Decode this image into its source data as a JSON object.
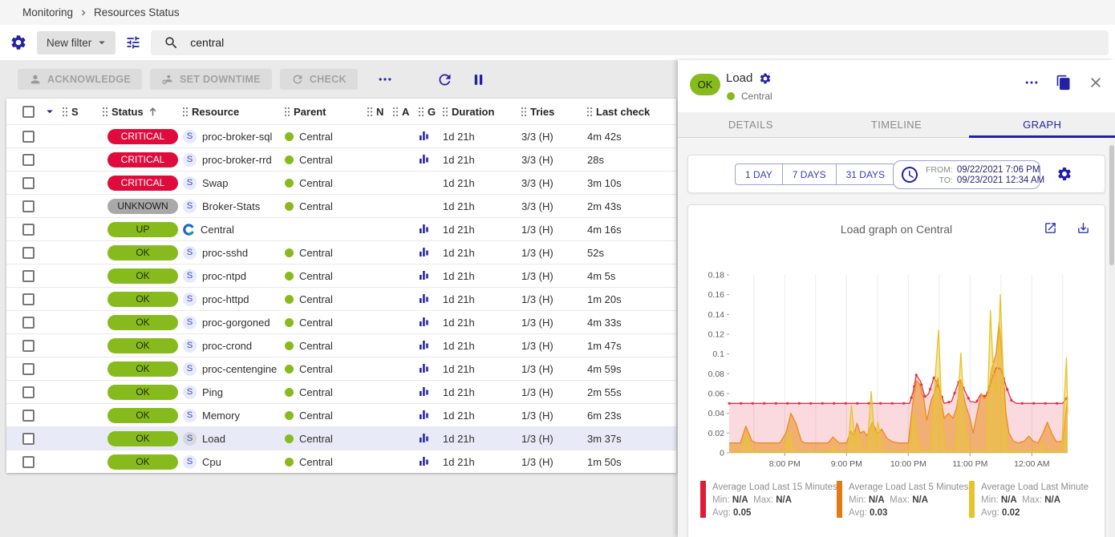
{
  "breadcrumb": {
    "items": [
      "Monitoring",
      "Resources Status"
    ]
  },
  "filter": {
    "new_filter_label": "New filter",
    "search_value": "central"
  },
  "toolbar": {
    "acknowledge_label": "ACKNOWLEDGE",
    "set_downtime_label": "SET DOWNTIME",
    "check_label": "CHECK"
  },
  "table": {
    "service_badge": "S",
    "columns": [
      "S",
      "Status",
      "Resource",
      "Parent",
      "N",
      "A",
      "G",
      "Duration",
      "Tries",
      "Last check"
    ],
    "rows": [
      {
        "status": "CRITICAL",
        "kind": "service",
        "resource": "proc-broker-sql",
        "parent": "Central",
        "graph": true,
        "duration": "1d 21h",
        "tries": "3/3 (H)",
        "last_check": "4m 42s",
        "selected": false
      },
      {
        "status": "CRITICAL",
        "kind": "service",
        "resource": "proc-broker-rrd",
        "parent": "Central",
        "graph": true,
        "duration": "1d 21h",
        "tries": "3/3 (H)",
        "last_check": "28s",
        "selected": false
      },
      {
        "status": "CRITICAL",
        "kind": "service",
        "resource": "Swap",
        "parent": "Central",
        "graph": false,
        "duration": "1d 21h",
        "tries": "3/3 (H)",
        "last_check": "3m 10s",
        "selected": false
      },
      {
        "status": "UNKNOWN",
        "kind": "service",
        "resource": "Broker-Stats",
        "parent": "Central",
        "graph": false,
        "duration": "1d 21h",
        "tries": "3/3 (H)",
        "last_check": "2m 43s",
        "selected": false
      },
      {
        "status": "UP",
        "kind": "host",
        "resource": "Central",
        "parent": "",
        "graph": true,
        "duration": "1d 21h",
        "tries": "1/3 (H)",
        "last_check": "4m 16s",
        "selected": false
      },
      {
        "status": "OK",
        "kind": "service",
        "resource": "proc-sshd",
        "parent": "Central",
        "graph": true,
        "duration": "1d 21h",
        "tries": "1/3 (H)",
        "last_check": "52s",
        "selected": false
      },
      {
        "status": "OK",
        "kind": "service",
        "resource": "proc-ntpd",
        "parent": "Central",
        "graph": true,
        "duration": "1d 21h",
        "tries": "1/3 (H)",
        "last_check": "4m 5s",
        "selected": false
      },
      {
        "status": "OK",
        "kind": "service",
        "resource": "proc-httpd",
        "parent": "Central",
        "graph": true,
        "duration": "1d 21h",
        "tries": "1/3 (H)",
        "last_check": "1m 20s",
        "selected": false
      },
      {
        "status": "OK",
        "kind": "service",
        "resource": "proc-gorgoned",
        "parent": "Central",
        "graph": true,
        "duration": "1d 21h",
        "tries": "1/3 (H)",
        "last_check": "4m 33s",
        "selected": false
      },
      {
        "status": "OK",
        "kind": "service",
        "resource": "proc-crond",
        "parent": "Central",
        "graph": true,
        "duration": "1d 21h",
        "tries": "1/3 (H)",
        "last_check": "1m 47s",
        "selected": false
      },
      {
        "status": "OK",
        "kind": "service",
        "resource": "proc-centengine",
        "parent": "Central",
        "graph": true,
        "duration": "1d 21h",
        "tries": "1/3 (H)",
        "last_check": "4m 59s",
        "selected": false
      },
      {
        "status": "OK",
        "kind": "service",
        "resource": "Ping",
        "parent": "Central",
        "graph": true,
        "duration": "1d 21h",
        "tries": "1/3 (H)",
        "last_check": "2m 55s",
        "selected": false
      },
      {
        "status": "OK",
        "kind": "service",
        "resource": "Memory",
        "parent": "Central",
        "graph": true,
        "duration": "1d 21h",
        "tries": "1/3 (H)",
        "last_check": "6m 23s",
        "selected": false
      },
      {
        "status": "OK",
        "kind": "service",
        "resource": "Load",
        "parent": "Central",
        "graph": true,
        "duration": "1d 21h",
        "tries": "1/3 (H)",
        "last_check": "3m 37s",
        "selected": true
      },
      {
        "status": "OK",
        "kind": "service",
        "resource": "Cpu",
        "parent": "Central",
        "graph": true,
        "duration": "1d 21h",
        "tries": "1/3 (H)",
        "last_check": "1m 50s",
        "selected": false
      }
    ]
  },
  "panel": {
    "status": "OK",
    "title": "Load",
    "parent": "Central",
    "tabs": [
      "DETAILS",
      "TIMELINE",
      "GRAPH"
    ],
    "active_tab": "GRAPH",
    "time_buttons": [
      "1 DAY",
      "7 DAYS",
      "31 DAYS"
    ],
    "from_label": "FROM:",
    "from_value": "09/22/2021 7:06 PM",
    "to_label": "TO:",
    "to_value": "09/23/2021 12:34 AM"
  },
  "chart_data": {
    "type": "area",
    "title": "Load graph on Central",
    "xlim": [
      19.1,
      24.58
    ],
    "ylim": [
      0,
      0.18
    ],
    "grid": "vertical-30min",
    "legend_position": "bottom",
    "legend_labels": {
      "min": "Min:",
      "max": "Max:",
      "avg": "Avg:"
    },
    "y_ticks": [
      0,
      0.02,
      0.04,
      0.06,
      0.08,
      0.1,
      0.12,
      0.14,
      0.16,
      0.18
    ],
    "x_ticks": [
      {
        "v": 20,
        "label": "8:00 PM"
      },
      {
        "v": 21,
        "label": "9:00 PM"
      },
      {
        "v": 22,
        "label": "10:00 PM"
      },
      {
        "v": 23,
        "label": "11:00 PM"
      },
      {
        "v": 24,
        "label": "12:00 AM"
      }
    ],
    "series": [
      {
        "name": "Average Load Last 15 Minutes",
        "color": "#e3304a",
        "fill": "rgba(227,48,74,0.18)",
        "swatch": "#e01b36",
        "dotted": true,
        "min": "N/A",
        "max": "N/A",
        "avg": "0.05",
        "points": [
          [
            19.1,
            0.05
          ],
          [
            22.02,
            0.05
          ],
          [
            22.08,
            0.062
          ],
          [
            22.13,
            0.079
          ],
          [
            22.2,
            0.072
          ],
          [
            22.27,
            0.056
          ],
          [
            22.33,
            0.06
          ],
          [
            22.42,
            0.077
          ],
          [
            22.5,
            0.065
          ],
          [
            22.58,
            0.05
          ],
          [
            22.7,
            0.052
          ],
          [
            22.83,
            0.074
          ],
          [
            22.92,
            0.062
          ],
          [
            23.0,
            0.052
          ],
          [
            23.1,
            0.051
          ],
          [
            23.17,
            0.059
          ],
          [
            23.25,
            0.057
          ],
          [
            23.33,
            0.07
          ],
          [
            23.42,
            0.086
          ],
          [
            23.5,
            0.085
          ],
          [
            23.58,
            0.068
          ],
          [
            23.67,
            0.053
          ],
          [
            23.75,
            0.05
          ],
          [
            24.5,
            0.05
          ],
          [
            24.58,
            0.057
          ]
        ]
      },
      {
        "name": "Average Load Last 5 Minutes",
        "color": "#ea8c1a",
        "fill": "rgba(234,140,26,0.55)",
        "swatch": "#e37a12",
        "dotted": false,
        "min": "N/A",
        "max": "N/A",
        "avg": "0.03",
        "points": [
          [
            19.1,
            0.01
          ],
          [
            19.28,
            0.01
          ],
          [
            19.37,
            0.027
          ],
          [
            19.47,
            0.012
          ],
          [
            19.55,
            0.01
          ],
          [
            19.92,
            0.01
          ],
          [
            20.02,
            0.02
          ],
          [
            20.1,
            0.04
          ],
          [
            20.18,
            0.03
          ],
          [
            20.27,
            0.012
          ],
          [
            20.33,
            0.01
          ],
          [
            20.7,
            0.01
          ],
          [
            20.78,
            0.016
          ],
          [
            20.88,
            0.01
          ],
          [
            21.0,
            0.01
          ],
          [
            21.07,
            0.022
          ],
          [
            21.12,
            0.018
          ],
          [
            21.17,
            0.03
          ],
          [
            21.22,
            0.02
          ],
          [
            21.28,
            0.022
          ],
          [
            21.33,
            0.017
          ],
          [
            21.42,
            0.031
          ],
          [
            21.5,
            0.02
          ],
          [
            21.57,
            0.024
          ],
          [
            21.65,
            0.015
          ],
          [
            21.75,
            0.011
          ],
          [
            21.85,
            0.01
          ],
          [
            22.0,
            0.01
          ],
          [
            22.08,
            0.055
          ],
          [
            22.13,
            0.073
          ],
          [
            22.18,
            0.07
          ],
          [
            22.25,
            0.055
          ],
          [
            22.3,
            0.033
          ],
          [
            22.37,
            0.053
          ],
          [
            22.43,
            0.062
          ],
          [
            22.48,
            0.076
          ],
          [
            22.53,
            0.055
          ],
          [
            22.58,
            0.035
          ],
          [
            22.65,
            0.04
          ],
          [
            22.72,
            0.035
          ],
          [
            22.78,
            0.045
          ],
          [
            22.85,
            0.074
          ],
          [
            22.92,
            0.05
          ],
          [
            23.0,
            0.035
          ],
          [
            23.05,
            0.02
          ],
          [
            23.13,
            0.045
          ],
          [
            23.18,
            0.06
          ],
          [
            23.23,
            0.055
          ],
          [
            23.3,
            0.06
          ],
          [
            23.35,
            0.085
          ],
          [
            23.42,
            0.1
          ],
          [
            23.47,
            0.132
          ],
          [
            23.53,
            0.09
          ],
          [
            23.58,
            0.04
          ],
          [
            23.63,
            0.02
          ],
          [
            23.7,
            0.012
          ],
          [
            23.78,
            0.01
          ],
          [
            23.88,
            0.012
          ],
          [
            23.95,
            0.017
          ],
          [
            24.02,
            0.012
          ],
          [
            24.1,
            0.01
          ],
          [
            24.18,
            0.02
          ],
          [
            24.25,
            0.031
          ],
          [
            24.32,
            0.02
          ],
          [
            24.4,
            0.011
          ],
          [
            24.5,
            0.012
          ],
          [
            24.58,
            0.056
          ]
        ]
      },
      {
        "name": "Average Load Last Minute",
        "color": "#e7c32a",
        "fill": "rgba(233,201,48,0.45)",
        "swatch": "#e8c32b",
        "dotted": false,
        "min": "N/A",
        "max": "N/A",
        "avg": "0.02",
        "points": [
          [
            19.1,
            0.001
          ],
          [
            19.3,
            0.001
          ],
          [
            19.37,
            0.02
          ],
          [
            19.44,
            0.008
          ],
          [
            19.5,
            0.001
          ],
          [
            19.97,
            0.001
          ],
          [
            20.07,
            0.021
          ],
          [
            20.14,
            0.005
          ],
          [
            20.2,
            0.001
          ],
          [
            20.72,
            0.001
          ],
          [
            20.78,
            0.008
          ],
          [
            20.84,
            0.001
          ],
          [
            21.02,
            0.001
          ],
          [
            21.08,
            0.048
          ],
          [
            21.14,
            0.01
          ],
          [
            21.19,
            0.021
          ],
          [
            21.26,
            0.005
          ],
          [
            21.33,
            0.002
          ],
          [
            21.4,
            0.062
          ],
          [
            21.46,
            0.01
          ],
          [
            21.51,
            0.031
          ],
          [
            21.58,
            0.002
          ],
          [
            21.8,
            0.001
          ],
          [
            22.02,
            0.002
          ],
          [
            22.08,
            0.04
          ],
          [
            22.14,
            0.015
          ],
          [
            22.2,
            0.002
          ],
          [
            22.36,
            0.002
          ],
          [
            22.45,
            0.09
          ],
          [
            22.49,
            0.124
          ],
          [
            22.55,
            0.03
          ],
          [
            22.61,
            0.002
          ],
          [
            22.76,
            0.002
          ],
          [
            22.85,
            0.101
          ],
          [
            22.93,
            0.02
          ],
          [
            23.0,
            0.002
          ],
          [
            23.26,
            0.002
          ],
          [
            23.33,
            0.144
          ],
          [
            23.38,
            0.08
          ],
          [
            23.43,
            0.06
          ],
          [
            23.49,
            0.16
          ],
          [
            23.56,
            0.04
          ],
          [
            23.62,
            0.002
          ],
          [
            24.1,
            0.002
          ],
          [
            24.16,
            0.01
          ],
          [
            24.22,
            0.002
          ],
          [
            24.48,
            0.002
          ],
          [
            24.56,
            0.096
          ],
          [
            24.58,
            0.04
          ]
        ]
      }
    ]
  },
  "colors": {
    "primary": "#2323a8",
    "critical": "#e00b3d",
    "ok": "#87bb1d",
    "unknown": "#a9a9a9",
    "selected_row": "#e9eaf8"
  }
}
